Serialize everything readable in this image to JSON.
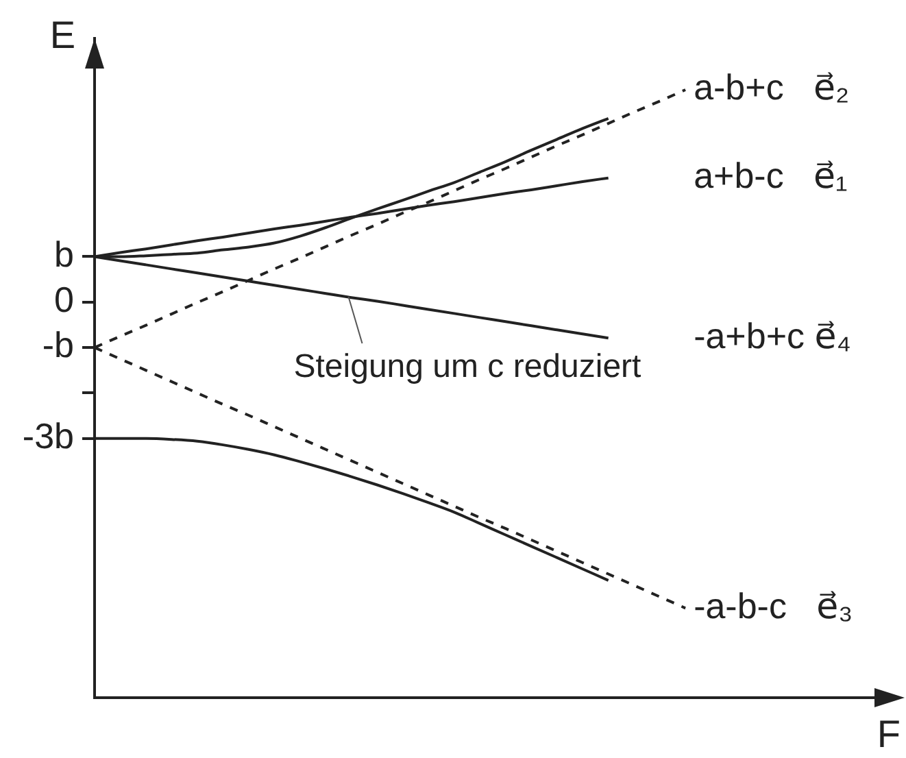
{
  "chart_data": {
    "type": "line",
    "ylabel": "E",
    "xlabel": "F",
    "categories": [
      null,
      null,
      null,
      null,
      null,
      null,
      null,
      null,
      null,
      null,
      null,
      null,
      null,
      null,
      null,
      null,
      null,
      null,
      null,
      null,
      null,
      null,
      null,
      null,
      null,
      null,
      null,
      null,
      null,
      null,
      null,
      null
    ],
    "ylim": [
      -8.7,
      5.8
    ],
    "yticks": [
      {
        "value": 1,
        "label": "b"
      },
      0,
      {
        "value": -1,
        "label": "-b"
      },
      {
        "value": -2,
        "label": null
      },
      {
        "value": -3,
        "label": "-3b"
      }
    ],
    "series": [
      {
        "name": "a-b+c   e⃗₂",
        "color": "#222222",
        "line_style": "dashed",
        "values": [
          -1,
          -0.75,
          -0.51,
          -0.26,
          -0.01,
          0.23,
          0.48,
          0.73,
          0.97,
          1.22,
          1.47,
          1.71,
          1.96,
          2.2,
          2.45,
          2.7,
          2.94,
          3.19,
          3.44,
          3.68,
          3.93,
          4.18,
          4.42,
          4.67,
          null,
          null,
          null,
          null,
          null,
          null,
          null,
          null
        ]
      },
      {
        "color": "#222222",
        "line_style": "solid",
        "values": [
          1,
          1,
          1.02,
          1.05,
          1.08,
          1.15,
          1.21,
          1.3,
          1.45,
          1.64,
          1.85,
          2.05,
          2.24,
          2.44,
          2.63,
          2.86,
          3.09,
          3.34,
          3.58,
          3.82,
          4.04,
          null,
          null,
          null,
          null,
          null,
          null,
          null,
          null,
          null,
          null,
          null
        ]
      },
      {
        "name": "a+b-c   e⃗₁",
        "color": "#222222",
        "line_style": "solid",
        "values": [
          1,
          1.09,
          1.17,
          1.26,
          1.35,
          1.43,
          1.52,
          1.61,
          1.69,
          1.78,
          1.87,
          1.95,
          2.04,
          2.13,
          2.21,
          2.3,
          2.39,
          2.47,
          2.56,
          2.65,
          2.73,
          null,
          null,
          null,
          null,
          null,
          null,
          null,
          null,
          null,
          null,
          null
        ]
      },
      {
        "name": "-a+b+c e⃗₄",
        "color": "#222222",
        "line_style": "solid",
        "values": [
          1,
          0.91,
          0.82,
          0.73,
          0.64,
          0.55,
          0.46,
          0.37,
          0.28,
          0.19,
          0.1,
          0.02,
          -0.07,
          -0.16,
          -0.25,
          -0.34,
          -0.43,
          -0.52,
          -0.61,
          -0.7,
          -0.79,
          null,
          null,
          null,
          null,
          null,
          null,
          null,
          null,
          null,
          null,
          null
        ]
      },
      {
        "name": "-a-b-c   e⃗₃",
        "color": "#222222",
        "line_style": "dashed",
        "values": [
          -1,
          -1.25,
          -1.5,
          -1.75,
          -2,
          -2.25,
          -2.49,
          -2.74,
          -2.99,
          -3.24,
          -3.49,
          -3.74,
          -3.99,
          -4.24,
          -4.49,
          -4.74,
          -4.98,
          -5.23,
          -5.48,
          -5.73,
          -5.98,
          -6.23,
          -6.48,
          -6.73,
          null,
          null,
          null,
          null,
          null,
          null,
          null,
          null
        ]
      },
      {
        "color": "#222222",
        "line_style": "solid",
        "values": [
          -3,
          -3,
          -3,
          -3.02,
          -3.06,
          -3.14,
          -3.24,
          -3.36,
          -3.51,
          -3.67,
          -3.84,
          -4.02,
          -4.21,
          -4.41,
          -4.62,
          -4.87,
          -5.12,
          -5.37,
          -5.62,
          -5.87,
          -6.12,
          null,
          null,
          null,
          null,
          null,
          null,
          null,
          null,
          null,
          null,
          null
        ]
      }
    ],
    "annotations": [
      "Steigung um c reduziert"
    ]
  }
}
